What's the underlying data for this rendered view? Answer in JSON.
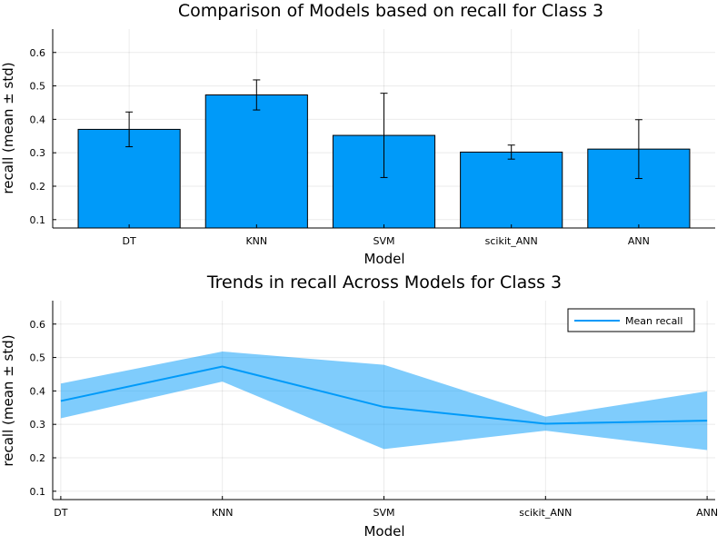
{
  "chart_data": [
    {
      "type": "bar",
      "title": "Comparison of Models based on recall for Class 3",
      "xlabel": "Model",
      "ylabel": "recall (mean ± std)",
      "categories": [
        "DT",
        "KNN",
        "SVM",
        "scikit_ANN",
        "ANN"
      ],
      "values": [
        0.37,
        0.473,
        0.352,
        0.302,
        0.311
      ],
      "std": [
        0.052,
        0.045,
        0.126,
        0.021,
        0.088
      ],
      "ylim": [
        0.075,
        0.67
      ],
      "yticks": [
        0.1,
        0.2,
        0.3,
        0.4,
        0.5,
        0.6
      ],
      "ytick_labels": [
        "0.1",
        "0.2",
        "0.3",
        "0.4",
        "0.5",
        "0.6"
      ],
      "grid": true,
      "bar_color": "#009af9"
    },
    {
      "type": "line",
      "title": "Trends in recall Across Models for Class 3",
      "xlabel": "Model",
      "ylabel": "recall (mean ± std)",
      "categories": [
        "DT",
        "KNN",
        "SVM",
        "scikit_ANN",
        "ANN"
      ],
      "series": [
        {
          "name": "Mean recall",
          "values": [
            0.37,
            0.473,
            0.352,
            0.302,
            0.311
          ],
          "std": [
            0.052,
            0.045,
            0.126,
            0.021,
            0.088
          ],
          "color": "#009af9"
        }
      ],
      "ylim": [
        0.075,
        0.67
      ],
      "yticks": [
        0.1,
        0.2,
        0.3,
        0.4,
        0.5,
        0.6
      ],
      "ytick_labels": [
        "0.1",
        "0.2",
        "0.3",
        "0.4",
        "0.5",
        "0.6"
      ],
      "grid": true,
      "legend": "top-right"
    }
  ]
}
